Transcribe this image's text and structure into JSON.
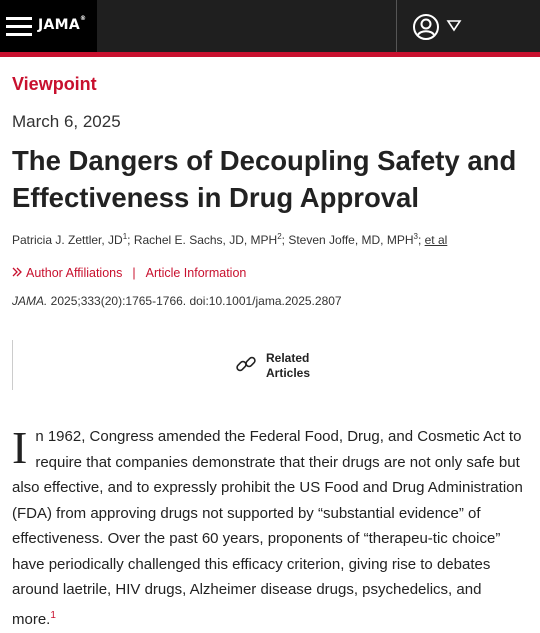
{
  "header": {
    "logo": "JAMA",
    "logo_mark": "®"
  },
  "article": {
    "section": "Viewpoint",
    "date": "March 6, 2025",
    "title": "The Dangers of Decoupling Safety and Effectiveness in Drug Approval",
    "authors": [
      {
        "name": "Patricia J. Zettler, JD",
        "sup": "1"
      },
      {
        "name": "Rachel E. Sachs, JD, MPH",
        "sup": "2"
      },
      {
        "name": "Steven Joffe, MD, MPH",
        "sup": "3"
      }
    ],
    "et_al": "et al",
    "author_affiliations": "Author Affiliations",
    "separator": "|",
    "article_information": "Article Information",
    "citation_journal": "JAMA.",
    "citation_rest": " 2025;333(20):1765-1766. doi:10.1001/jama.2025.2807",
    "related_line1": "Related",
    "related_line2": "Articles",
    "dropcap": "I",
    "body_text": "n 1962, Congress amended the Federal Food, Drug, and Cosmetic Act to require that companies demonstrate that their drugs are not only safe but also effective, and to expressly prohibit the US Food and Drug Administration (FDA) from approving drugs not supported by “substantial evidence” of effectiveness. Over the past 60 years, proponents of “therapeu-tic choice” have periodically challenged this efficacy criterion, giving rise to debates around laetrile, HIV drugs, Alzheimer disease drugs, psychedelics, and more.",
    "body_ref": "1"
  },
  "colors": {
    "accent": "#c8102e",
    "topbar": "#1f1f1f"
  },
  "icons": [
    "menu-icon",
    "user-icon",
    "caret-down-icon",
    "chevron-right-icon",
    "link-icon"
  ]
}
